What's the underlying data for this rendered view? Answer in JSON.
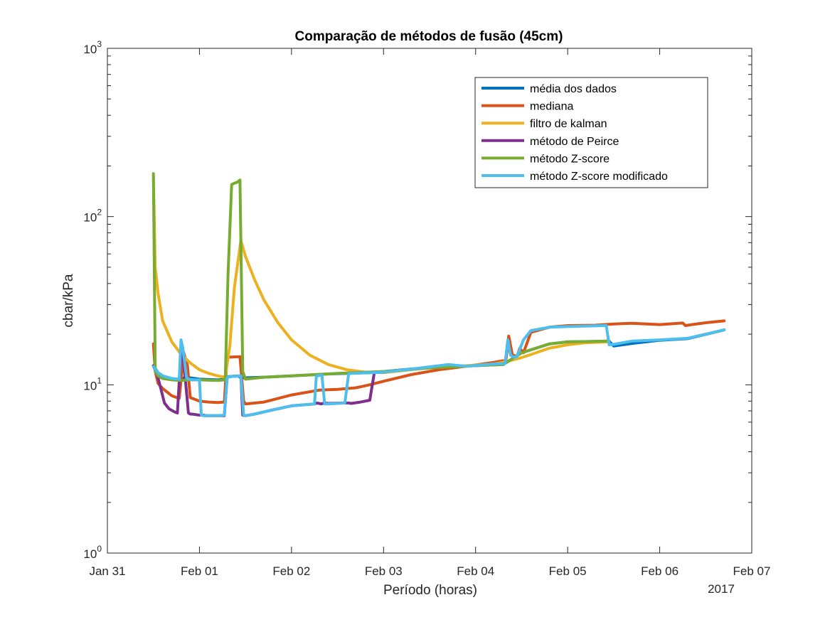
{
  "chart_data": {
    "type": "line",
    "title": "Comparação de métodos de fusão (45cm)",
    "xlabel": "Período (horas)",
    "ylabel": "cbar/kPa",
    "year_label": "2017",
    "yscale": "log",
    "ylim": [
      1,
      1000
    ],
    "xlim": [
      "2017-01-31",
      "2017-02-07"
    ],
    "xticks": [
      "Jan 31",
      "Feb 01",
      "Feb 02",
      "Feb 03",
      "Feb 04",
      "Feb 05",
      "Feb 06",
      "Feb 07"
    ],
    "yticks": [
      {
        "base": "10",
        "exp": "0"
      },
      {
        "base": "10",
        "exp": "1"
      },
      {
        "base": "10",
        "exp": "2"
      },
      {
        "base": "10",
        "exp": "3"
      }
    ],
    "grid": false,
    "legend_position": "top-right",
    "series": [
      {
        "name": "média dos dados",
        "color": "#0072BD",
        "x": [
          0.5,
          0.55,
          0.6,
          0.7,
          0.8,
          0.85,
          0.9,
          1.0,
          1.2,
          1.28,
          1.32,
          1.42,
          1.45,
          1.5,
          1.7,
          2.0,
          2.4,
          2.8,
          3.0,
          3.5,
          4.0,
          4.3,
          4.5,
          4.8,
          5.0,
          5.3,
          5.45,
          5.5,
          5.7,
          6.0,
          6.3,
          6.7
        ],
        "y": [
          13,
          11.8,
          11.3,
          10.9,
          10.7,
          11.2,
          11.0,
          10.8,
          10.7,
          10.8,
          11.2,
          11.3,
          11.0,
          11.0,
          11.1,
          11.3,
          11.6,
          11.8,
          12.0,
          12.7,
          13.0,
          13.2,
          15.5,
          17.5,
          18.0,
          18.1,
          18.2,
          17.0,
          17.6,
          18.4,
          18.8,
          21.2
        ]
      },
      {
        "name": "mediana",
        "color": "#D95319",
        "x": [
          0.5,
          0.52,
          0.55,
          0.6,
          0.7,
          0.78,
          0.83,
          0.87,
          0.9,
          1.0,
          1.1,
          1.2,
          1.27,
          1.3,
          1.33,
          1.44,
          1.48,
          1.5,
          1.7,
          2.0,
          2.3,
          2.5,
          2.7,
          2.85,
          3.0,
          3.3,
          3.6,
          3.9,
          4.2,
          4.33,
          4.36,
          4.4,
          4.45,
          4.48,
          4.52,
          4.6,
          4.8,
          5.0,
          5.3,
          5.5,
          5.7,
          6.0,
          6.25,
          6.28,
          6.35,
          6.5,
          6.7
        ],
        "y": [
          17.5,
          12,
          10.2,
          9.5,
          8.6,
          8.3,
          15.5,
          13.0,
          8.4,
          8.0,
          7.9,
          7.85,
          7.9,
          14.5,
          14.6,
          14.7,
          8.0,
          7.7,
          7.9,
          8.7,
          9.3,
          9.4,
          9.6,
          10.0,
          10.5,
          11.5,
          12.3,
          12.9,
          13.6,
          14.0,
          19.5,
          15.0,
          14.8,
          16.5,
          15.5,
          20.5,
          22.0,
          22.5,
          22.6,
          23.0,
          23.2,
          22.8,
          23.3,
          22.5,
          22.8,
          23.4,
          24.0
        ]
      },
      {
        "name": "filtro de kalman",
        "color": "#EDB120",
        "x": [
          0.5,
          0.52,
          0.55,
          0.6,
          0.7,
          0.8,
          0.9,
          1.0,
          1.1,
          1.2,
          1.28,
          1.33,
          1.38,
          1.42,
          1.45,
          1.5,
          1.6,
          1.7,
          1.85,
          2.0,
          2.2,
          2.4,
          2.6,
          2.8,
          3.0,
          3.3,
          3.6,
          3.9,
          4.2,
          4.35,
          4.5,
          4.8,
          5.0,
          5.2,
          5.45
        ],
        "y": [
          170,
          50,
          35,
          24,
          18,
          15.2,
          13.5,
          12.3,
          11.7,
          11.3,
          11.1,
          17,
          38,
          55,
          72,
          58,
          42,
          32,
          23.5,
          18.5,
          15,
          13.2,
          12.3,
          11.9,
          11.8,
          12.3,
          12.9,
          13.0,
          13.3,
          13.8,
          14.5,
          16.5,
          17.3,
          17.8,
          18.0
        ]
      },
      {
        "name": "método de Peirce",
        "color": "#7E2F8E",
        "x": [
          0.5,
          0.55,
          0.58,
          0.62,
          0.67,
          0.73,
          0.76,
          0.8,
          0.82,
          0.86,
          0.88,
          0.9,
          0.92,
          1.0,
          1.05,
          1.07,
          1.27,
          1.3,
          1.33,
          1.45,
          1.47,
          1.5,
          1.6,
          1.8,
          2.0,
          2.25,
          2.28,
          2.32,
          2.36,
          2.4,
          2.58,
          2.62,
          2.65,
          2.75,
          2.85,
          2.9,
          3.0
        ],
        "y": [
          13,
          11,
          9.5,
          7.8,
          7.2,
          6.9,
          6.8,
          15.8,
          15.5,
          9.0,
          6.8,
          6.7,
          6.7,
          6.6,
          6.6,
          6.55,
          6.55,
          11.0,
          11.2,
          11.3,
          6.6,
          6.55,
          6.7,
          7.1,
          7.5,
          7.7,
          7.8,
          7.7,
          7.8,
          7.75,
          7.8,
          7.8,
          7.75,
          7.9,
          8.1,
          11.8,
          11.9
        ]
      },
      {
        "name": "método Z-score",
        "color": "#77AC30",
        "x": [
          0.5,
          0.52,
          0.55,
          0.6,
          0.7,
          0.8,
          0.9,
          1.0,
          1.1,
          1.2,
          1.28,
          1.31,
          1.35,
          1.38,
          1.41,
          1.44,
          1.47,
          1.5,
          1.7,
          2.0,
          2.5,
          3.0,
          3.5,
          4.0,
          4.3,
          4.5,
          4.8,
          5.0,
          5.3,
          5.45
        ],
        "y": [
          180,
          12,
          11.3,
          10.9,
          10.7,
          10.6,
          10.7,
          10.7,
          10.65,
          10.6,
          10.7,
          45,
          155,
          158,
          160,
          165,
          12,
          10.8,
          11.1,
          11.3,
          11.7,
          12.0,
          12.6,
          13.0,
          13.2,
          15.5,
          17.5,
          18.0,
          18.1,
          18.2
        ]
      },
      {
        "name": "método Z-score modificado",
        "color": "#4DBEEE",
        "x": [
          0.5,
          0.55,
          0.6,
          0.7,
          0.78,
          0.8,
          0.82,
          0.86,
          0.88,
          0.95,
          1.0,
          1.02,
          1.05,
          1.2,
          1.27,
          1.3,
          1.33,
          1.45,
          1.48,
          1.5,
          1.6,
          1.8,
          2.0,
          2.25,
          2.27,
          2.33,
          2.36,
          2.4,
          2.58,
          2.62,
          2.65,
          2.9,
          3.0,
          3.3,
          3.7,
          3.9,
          4.2,
          4.32,
          4.35,
          4.38,
          4.42,
          4.45,
          4.52,
          4.6,
          4.8,
          5.0,
          5.3,
          5.42,
          5.45,
          5.5,
          5.7,
          6.0,
          6.3,
          6.7
        ],
        "y": [
          12.8,
          11.8,
          11.3,
          10.9,
          10.8,
          18.5,
          16.5,
          11.0,
          10.8,
          10.7,
          10.7,
          6.6,
          6.55,
          6.55,
          6.6,
          11.0,
          11.2,
          11.3,
          6.6,
          6.55,
          6.7,
          7.1,
          7.5,
          7.7,
          11.3,
          11.4,
          7.7,
          7.7,
          7.8,
          11.6,
          11.7,
          11.8,
          11.9,
          12.4,
          13.2,
          12.9,
          13.3,
          13.4,
          18.5,
          15.0,
          14.5,
          14.8,
          18.5,
          21.0,
          22.0,
          22.2,
          22.4,
          22.5,
          17.3,
          17.4,
          18.2,
          18.5,
          18.9,
          21.2
        ]
      }
    ]
  }
}
